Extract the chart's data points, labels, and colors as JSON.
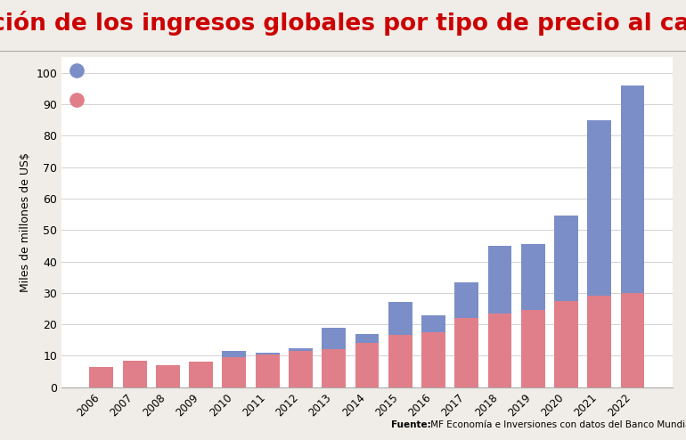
{
  "title": "Evolución de los ingresos globales por tipo de precio al carbono",
  "ylabel": "Miles de millones de US$",
  "source_bold": "Fuente:",
  "source_rest": " MF Economía e Inversiones con datos del Banco Mundial.",
  "years": [
    2006,
    2007,
    2008,
    2009,
    2010,
    2011,
    2012,
    2013,
    2014,
    2015,
    2016,
    2017,
    2018,
    2019,
    2020,
    2021,
    2022
  ],
  "ets_values": [
    0.0,
    0.0,
    0.0,
    0.0,
    2.0,
    0.5,
    1.0,
    7.0,
    3.0,
    10.5,
    5.5,
    11.5,
    21.5,
    21.0,
    27.0,
    56.0,
    66.0
  ],
  "carbon_tax_values": [
    6.5,
    8.5,
    7.0,
    8.0,
    9.5,
    10.5,
    11.5,
    12.0,
    14.0,
    16.5,
    17.5,
    22.0,
    23.5,
    24.5,
    27.5,
    29.0,
    30.0
  ],
  "color_ets": "#7B8EC8",
  "color_tax": "#E07F8A",
  "ylim": [
    0,
    105
  ],
  "yticks": [
    0,
    10,
    20,
    30,
    40,
    50,
    60,
    70,
    80,
    90,
    100
  ],
  "title_color": "#CC0000",
  "title_fontsize": 19,
  "outer_background": "#f0ede8",
  "inner_background": "#ffffff",
  "legend_dot_ets": "#7B8EC8",
  "legend_dot_tax": "#E07F8A",
  "bar_width": 0.72
}
